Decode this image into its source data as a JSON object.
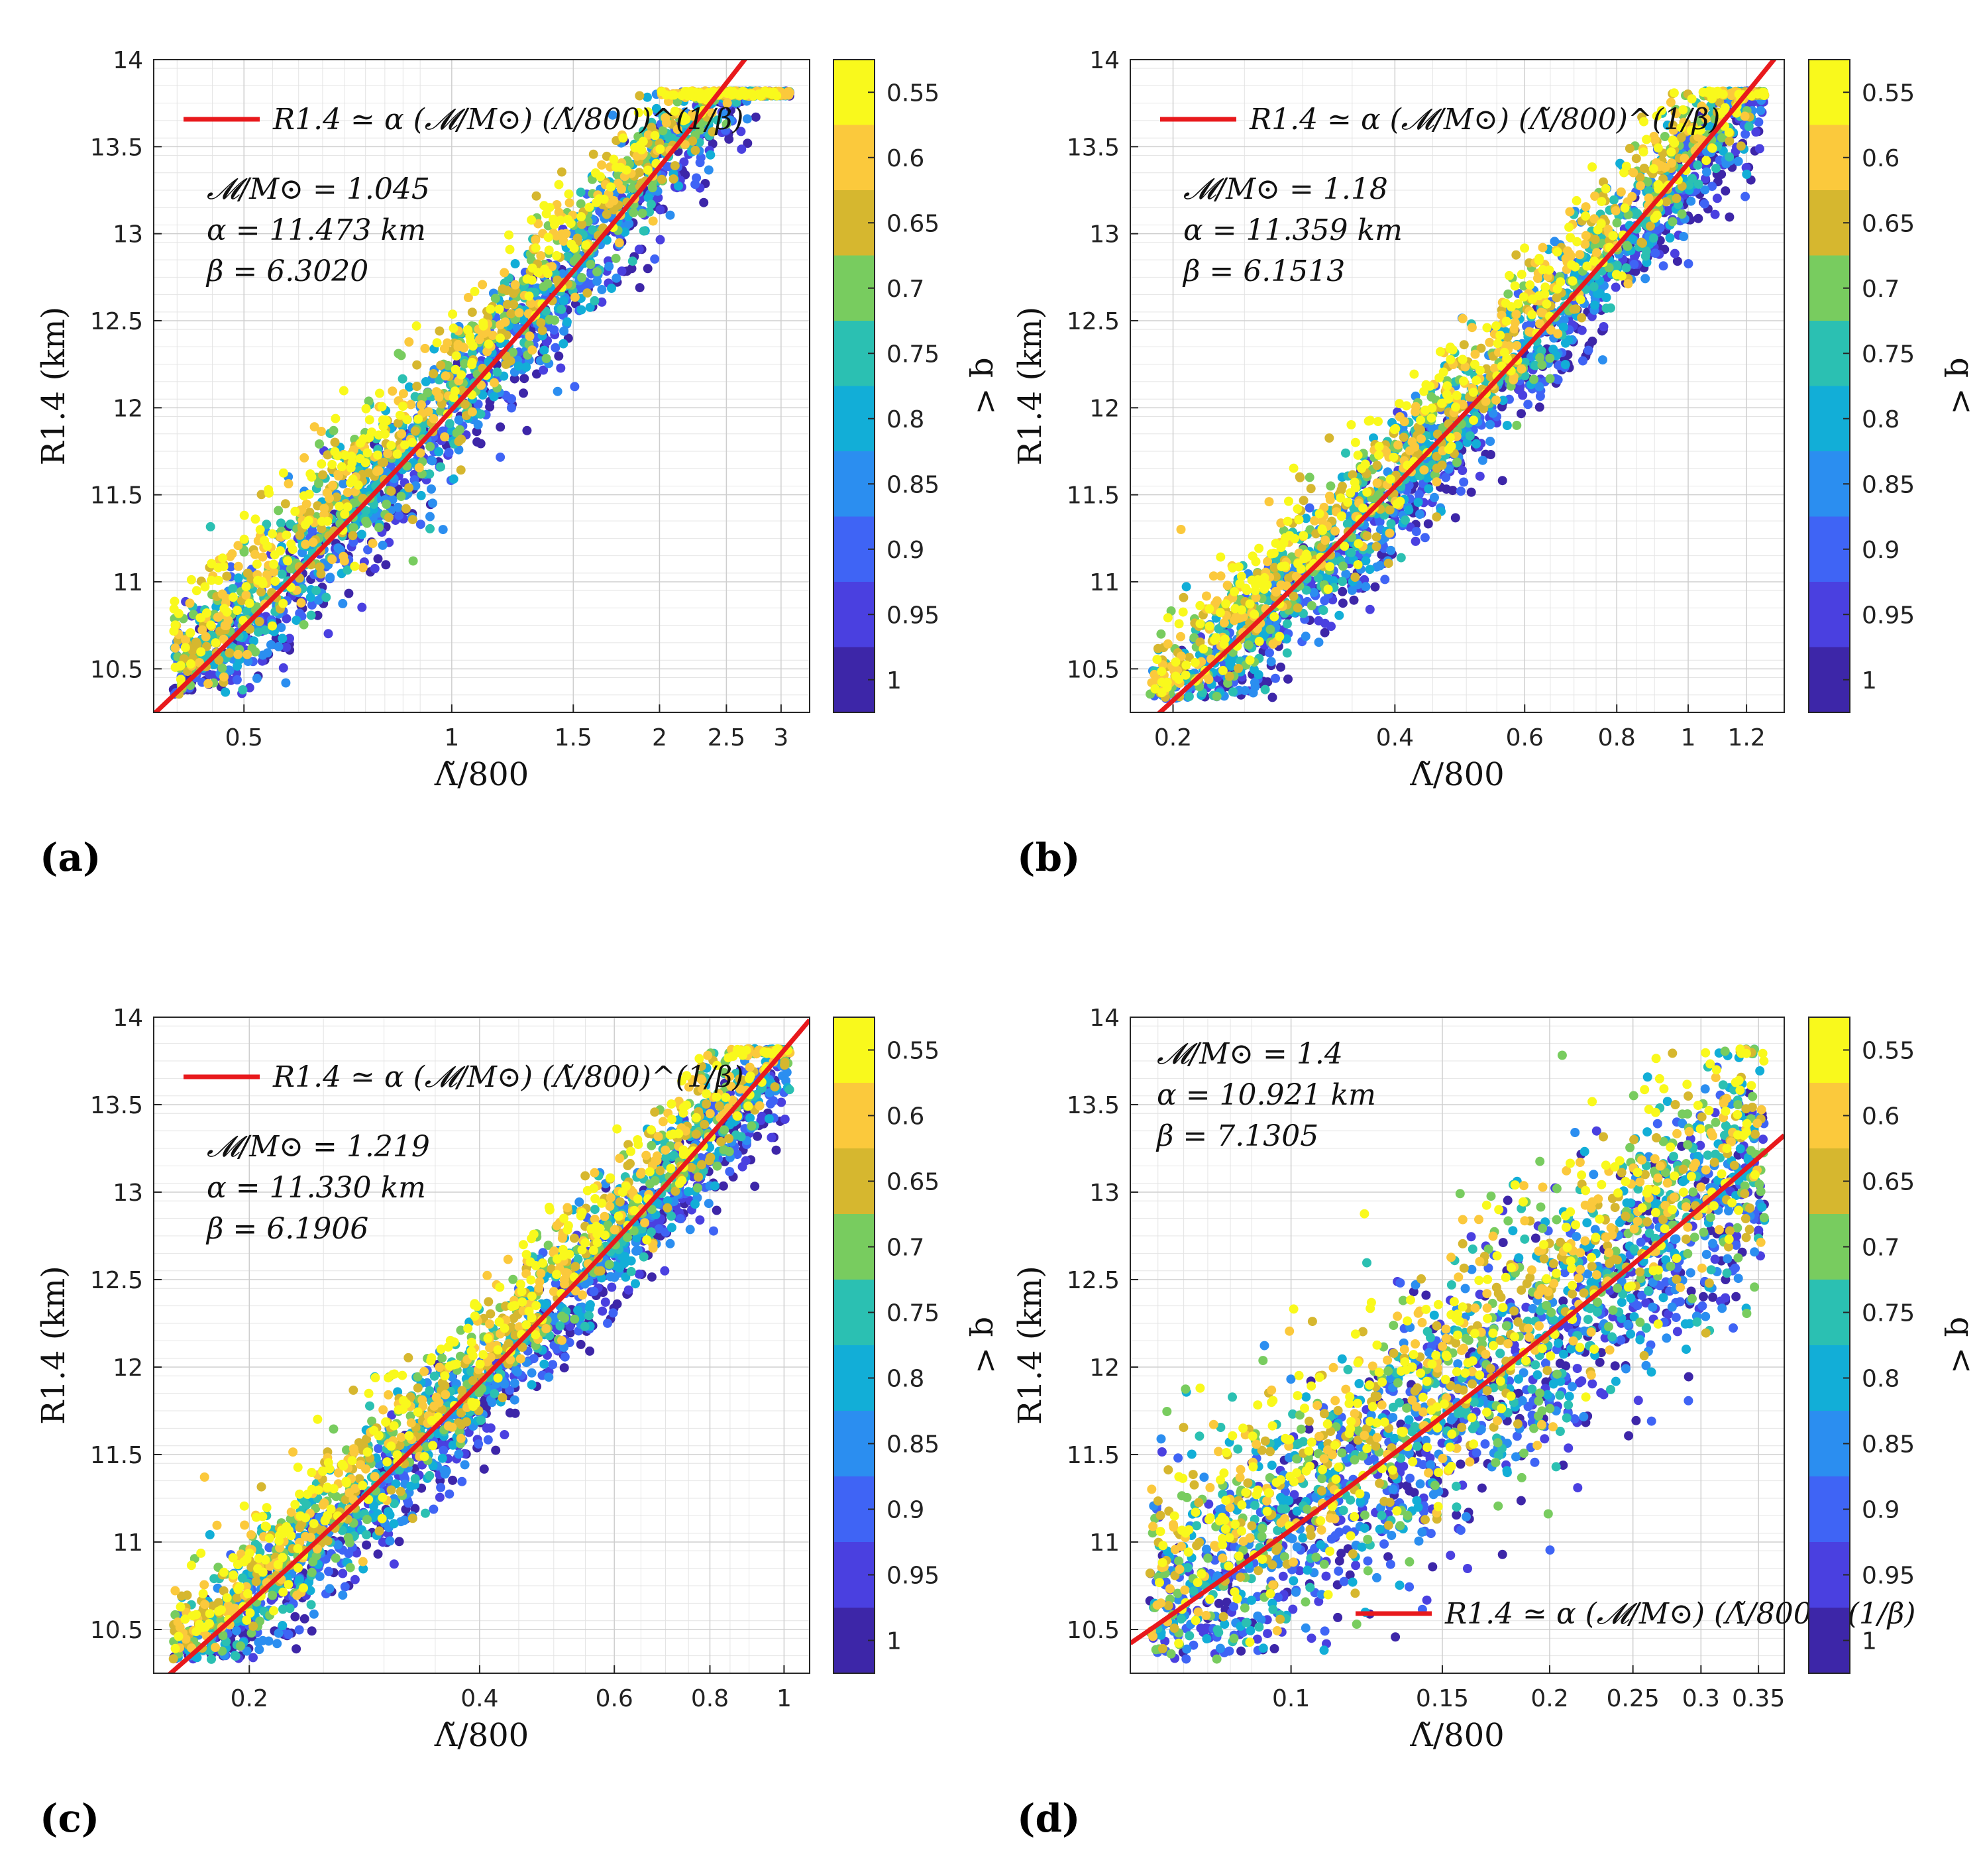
{
  "colors": {
    "fit_line": "#e8191c",
    "colormap": [
      "#3d26a8",
      "#4a40e0",
      "#3f64f5",
      "#2b8ef0",
      "#12aed7",
      "#2bc0b2",
      "#78cc5f",
      "#d6b72f",
      "#fbc93c",
      "#f9f91c"
    ]
  },
  "colorbar": {
    "label": "q <",
    "ticks": [
      "0.55",
      "0.6",
      "0.65",
      "0.7",
      "0.75",
      "0.8",
      "0.85",
      "0.9",
      "0.95",
      "1"
    ]
  },
  "chart_data": [
    {
      "panel": "(a)",
      "type": "scatter",
      "xscale": "log",
      "xlim": [
        0.37,
        3.3
      ],
      "ylim": [
        10.25,
        14
      ],
      "xticks": [
        "0.5",
        "1",
        "1.5",
        "2",
        "2.5",
        "3"
      ],
      "yticks": [
        "10.5",
        "11",
        "11.5",
        "12",
        "12.5",
        "13",
        "13.5",
        "14"
      ],
      "xlabel": "Λ̃/800",
      "ylabel": "R1.4 (km)",
      "legend": "R1.4 ≃ α (𝓜/M⊙) (Λ̃/800)^(1/β)",
      "legend_position": "top-left",
      "annotations": [
        "𝓜/M⊙ = 1.045",
        "α = 11.473 km",
        "β = 6.3020"
      ],
      "fit": {
        "chirp_mass": 1.045,
        "alpha_km": 11.473,
        "beta": 6.302
      },
      "colorbar_label": "q <"
    },
    {
      "panel": "(b)",
      "type": "scatter",
      "xscale": "log",
      "xlim": [
        0.175,
        1.35
      ],
      "ylim": [
        10.25,
        14
      ],
      "xticks": [
        "0.2",
        "0.4",
        "0.6",
        "0.8",
        "1",
        "1.2"
      ],
      "yticks": [
        "10.5",
        "11",
        "11.5",
        "12",
        "12.5",
        "13",
        "13.5",
        "14"
      ],
      "xlabel": "Λ̃/800",
      "ylabel": "R1.4 (km)",
      "legend": "R1.4 ≃ α (𝓜/M⊙) (Λ̃/800)^(1/β)",
      "legend_position": "top-left",
      "annotations": [
        "𝓜/M⊙ = 1.18",
        "α = 11.359 km",
        "β = 6.1513"
      ],
      "fit": {
        "chirp_mass": 1.18,
        "alpha_km": 11.359,
        "beta": 6.1513
      },
      "colorbar_label": "q <"
    },
    {
      "panel": "(c)",
      "type": "scatter",
      "xscale": "log",
      "xlim": [
        0.15,
        1.08
      ],
      "ylim": [
        10.25,
        14
      ],
      "xticks": [
        "0.2",
        "0.4",
        "0.6",
        "0.8",
        "1"
      ],
      "yticks": [
        "10.5",
        "11",
        "11.5",
        "12",
        "12.5",
        "13",
        "13.5",
        "14"
      ],
      "xlabel": "Λ̃/800",
      "ylabel": "R1.4 (km)",
      "legend": "R1.4 ≃ α (𝓜/M⊙) (Λ̃/800)^(1/β)",
      "legend_position": "top-left",
      "annotations": [
        "𝓜/M⊙ = 1.219",
        "α = 11.330 km",
        "β = 6.1906"
      ],
      "fit": {
        "chirp_mass": 1.219,
        "alpha_km": 11.33,
        "beta": 6.1906
      },
      "colorbar_label": "q <"
    },
    {
      "panel": "(d)",
      "type": "scatter",
      "xscale": "log",
      "xlim": [
        0.065,
        0.375
      ],
      "ylim": [
        10.25,
        14
      ],
      "xticks": [
        "0.1",
        "0.15",
        "0.2",
        "0.25",
        "0.3",
        "0.35"
      ],
      "yticks": [
        "10.5",
        "11",
        "11.5",
        "12",
        "12.5",
        "13",
        "13.5",
        "14"
      ],
      "xlabel": "Λ̃/800",
      "ylabel": "R1.4 (km)",
      "legend": "R1.4 ≃ α (𝓜/M⊙) (Λ̃/800)^(1/β)",
      "legend_position": "bottom-right",
      "annotations": [
        "𝓜/M⊙ = 1.4",
        "α = 10.921 km",
        "β = 7.1305"
      ],
      "fit": {
        "chirp_mass": 1.4,
        "alpha_km": 10.921,
        "beta": 7.1305
      },
      "colorbar_label": "q <"
    }
  ]
}
